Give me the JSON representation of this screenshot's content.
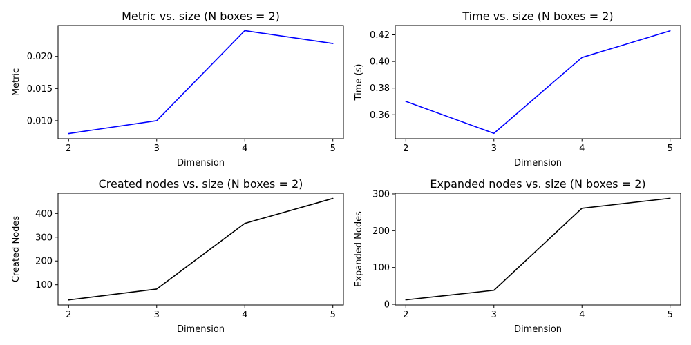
{
  "chart_data": [
    {
      "type": "line",
      "title": "Metric vs. size (N boxes = 2)",
      "xlabel": "Dimension",
      "ylabel": "Metric",
      "x": [
        2,
        3,
        4,
        5
      ],
      "series": [
        {
          "values": [
            0.008,
            0.01,
            0.024,
            0.022
          ],
          "color": "#0000ff"
        }
      ],
      "xticks": [
        2,
        3,
        4,
        5
      ],
      "yticks": [
        0.01,
        0.015,
        0.02
      ],
      "ytick_labels": [
        "0.010",
        "0.015",
        "0.020"
      ],
      "xlim": [
        1.88,
        5.12
      ],
      "ylim": [
        0.0072,
        0.0248
      ],
      "grid": false
    },
    {
      "type": "line",
      "title": "Time vs. size (N boxes = 2)",
      "xlabel": "Dimension",
      "ylabel": "Time (s)",
      "x": [
        2,
        3,
        4,
        5
      ],
      "series": [
        {
          "values": [
            0.37,
            0.346,
            0.403,
            0.423
          ],
          "color": "#0000ff"
        }
      ],
      "xticks": [
        2,
        3,
        4,
        5
      ],
      "yticks": [
        0.36,
        0.38,
        0.4,
        0.42
      ],
      "ytick_labels": [
        "0.36",
        "0.38",
        "0.40",
        "0.42"
      ],
      "xlim": [
        1.88,
        5.12
      ],
      "ylim": [
        0.342,
        0.427
      ],
      "grid": false
    },
    {
      "type": "line",
      "title": "Created nodes vs. size (N boxes = 2)",
      "xlabel": "Dimension",
      "ylabel": "Created Nodes",
      "x": [
        2,
        3,
        4,
        5
      ],
      "series": [
        {
          "values": [
            36,
            82,
            358,
            463
          ],
          "color": "#000000"
        }
      ],
      "xticks": [
        2,
        3,
        4,
        5
      ],
      "yticks": [
        100,
        200,
        300,
        400
      ],
      "ytick_labels": [
        "100",
        "200",
        "300",
        "400"
      ],
      "xlim": [
        1.88,
        5.12
      ],
      "ylim": [
        15,
        485
      ],
      "grid": false
    },
    {
      "type": "line",
      "title": "Expanded nodes vs. size (N boxes = 2)",
      "xlabel": "Dimension",
      "ylabel": "Expanded Nodes",
      "x": [
        2,
        3,
        4,
        5
      ],
      "series": [
        {
          "values": [
            12,
            38,
            261,
            288
          ],
          "color": "#000000"
        }
      ],
      "xticks": [
        2,
        3,
        4,
        5
      ],
      "yticks": [
        0,
        100,
        200,
        300
      ],
      "ytick_labels": [
        "0",
        "100",
        "200",
        "300"
      ],
      "xlim": [
        1.88,
        5.12
      ],
      "ylim": [
        -1.8,
        301.8
      ],
      "grid": false
    }
  ]
}
